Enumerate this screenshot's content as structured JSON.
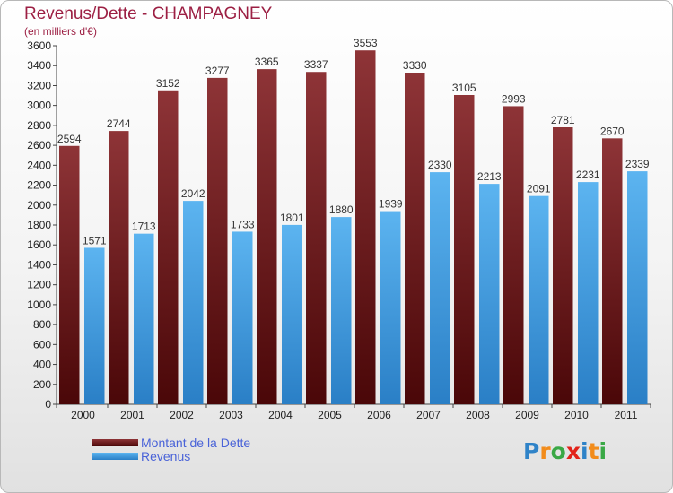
{
  "chart_data": {
    "type": "bar",
    "title": "Revenus/Dette - CHAMPAGNEY",
    "subtitle": "(en milliers d'€)",
    "categories": [
      "2000",
      "2001",
      "2002",
      "2003",
      "2004",
      "2005",
      "2006",
      "2007",
      "2008",
      "2009",
      "2010",
      "2011"
    ],
    "series": [
      {
        "name": "Montant de la Dette",
        "color": "#7a1f22",
        "values": [
          2594,
          2744,
          3152,
          3277,
          3365,
          3337,
          3553,
          3330,
          3105,
          2993,
          2781,
          2670
        ]
      },
      {
        "name": "Revenus",
        "color": "#45a3e6",
        "values": [
          1571,
          1713,
          2042,
          1733,
          1801,
          1880,
          1939,
          2330,
          2213,
          2091,
          2231,
          2339
        ]
      }
    ],
    "ylim": [
      0,
      3600
    ],
    "ytick_step": 200,
    "yticks": [
      0,
      200,
      400,
      600,
      800,
      1000,
      1200,
      1400,
      1600,
      1800,
      2000,
      2200,
      2400,
      2600,
      2800,
      3000,
      3200,
      3400,
      3600
    ],
    "grid": false,
    "legend": "bottom-left",
    "xlabel": "",
    "ylabel": ""
  },
  "logo": {
    "text": "Proxiti",
    "letters": [
      "P",
      "r",
      "o",
      "x",
      "i",
      "t",
      "i"
    ],
    "colors": [
      "#2f83c8",
      "#f28c1b",
      "#3aa845",
      "#e2231a",
      "#2f83c8",
      "#f28c1b",
      "#3aa845"
    ]
  }
}
